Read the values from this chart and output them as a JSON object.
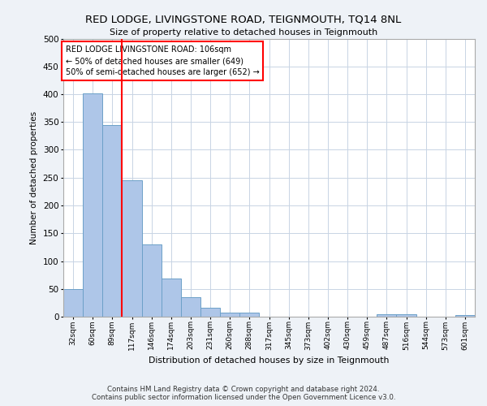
{
  "title1": "RED LODGE, LIVINGSTONE ROAD, TEIGNMOUTH, TQ14 8NL",
  "title2": "Size of property relative to detached houses in Teignmouth",
  "xlabel": "Distribution of detached houses by size in Teignmouth",
  "ylabel": "Number of detached properties",
  "footer1": "Contains HM Land Registry data © Crown copyright and database right 2024.",
  "footer2": "Contains public sector information licensed under the Open Government Licence v3.0.",
  "categories": [
    "32sqm",
    "60sqm",
    "89sqm",
    "117sqm",
    "146sqm",
    "174sqm",
    "203sqm",
    "231sqm",
    "260sqm",
    "288sqm",
    "317sqm",
    "345sqm",
    "373sqm",
    "402sqm",
    "430sqm",
    "459sqm",
    "487sqm",
    "516sqm",
    "544sqm",
    "573sqm",
    "601sqm"
  ],
  "values": [
    50,
    401,
    345,
    245,
    130,
    68,
    35,
    16,
    8,
    8,
    0,
    0,
    0,
    0,
    0,
    0,
    5,
    5,
    0,
    0,
    3
  ],
  "bar_color": "#aec6e8",
  "bar_edge_color": "#6ca0c8",
  "vline_x": 2.5,
  "vline_color": "red",
  "annotation_text": "RED LODGE LIVINGSTONE ROAD: 106sqm\n← 50% of detached houses are smaller (649)\n50% of semi-detached houses are larger (652) →",
  "annotation_box_color": "white",
  "annotation_box_edge_color": "red",
  "ylim": [
    0,
    500
  ],
  "yticks": [
    0,
    50,
    100,
    150,
    200,
    250,
    300,
    350,
    400,
    450,
    500
  ],
  "bg_color": "#eef2f7",
  "plot_bg_color": "white",
  "grid_color": "#c8d4e4"
}
